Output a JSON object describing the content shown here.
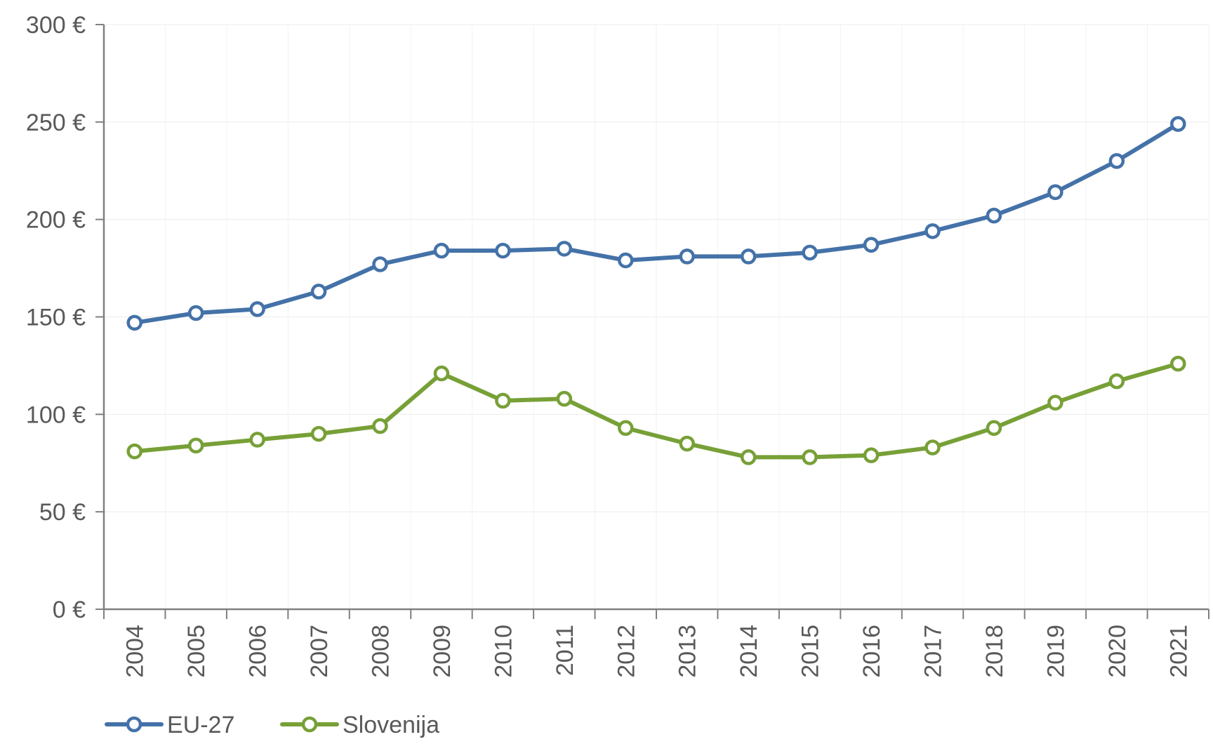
{
  "chart_data": {
    "type": "line",
    "title": "",
    "xlabel": "",
    "ylabel": "",
    "x": [
      "2004",
      "2005",
      "2006",
      "2007",
      "2008",
      "2009",
      "2010",
      "2011",
      "2012",
      "2013",
      "2014",
      "2015",
      "2016",
      "2017",
      "2018",
      "2019",
      "2020",
      "2021"
    ],
    "ylim": [
      0,
      300
    ],
    "y_ticks": [
      0,
      50,
      100,
      150,
      200,
      250,
      300
    ],
    "y_tick_labels": [
      "0 €",
      "50 €",
      "100 €",
      "150 €",
      "200 €",
      "250 €",
      "300 €"
    ],
    "grid": true,
    "legend_position": "bottom-left",
    "series": [
      {
        "name": "EU-27",
        "color": "#4472a8",
        "values": [
          147,
          152,
          154,
          163,
          177,
          184,
          184,
          185,
          179,
          181,
          181,
          183,
          187,
          194,
          202,
          214,
          230,
          249
        ]
      },
      {
        "name": "Slovenija",
        "color": "#77a037",
        "values": [
          81,
          84,
          87,
          90,
          94,
          121,
          107,
          108,
          93,
          85,
          78,
          78,
          79,
          83,
          93,
          106,
          117,
          126
        ]
      }
    ]
  }
}
